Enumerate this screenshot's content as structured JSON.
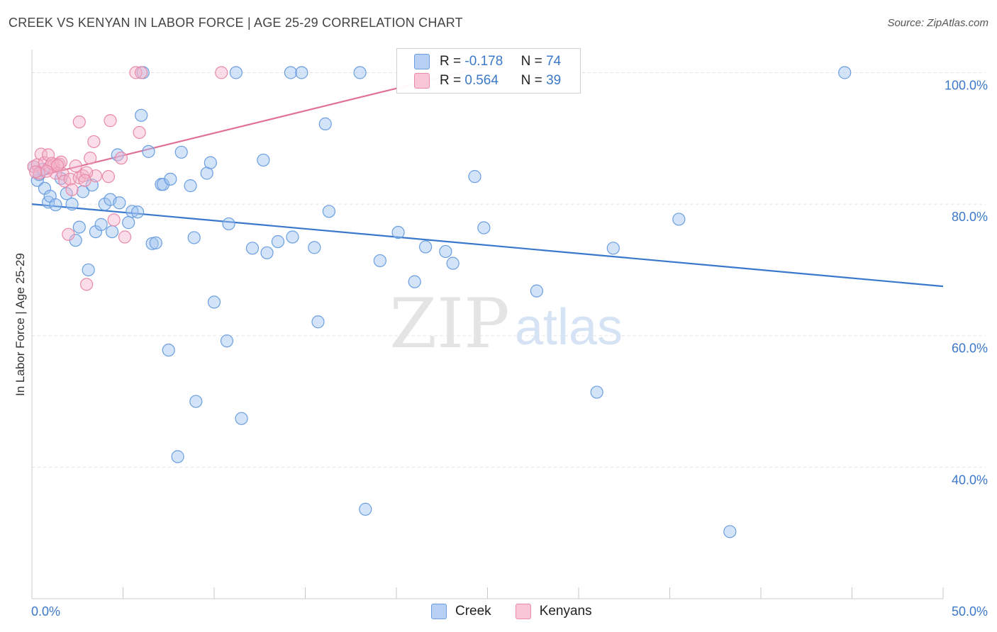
{
  "title": "CREEK VS KENYAN IN LABOR FORCE | AGE 25-29 CORRELATION CHART",
  "source": "Source: ZipAtlas.com",
  "watermark": {
    "zip": "ZIP",
    "atlas": "atlas"
  },
  "legend": {
    "r_label": "R =",
    "n_label": "N =",
    "rows": [
      {
        "series": "Creek",
        "r": "-0.178",
        "n": "74",
        "fill": "#a8c8f0",
        "stroke": "#5b8fd6"
      },
      {
        "series": "Kenyans",
        "r": "0.564",
        "n": "39",
        "fill": "#f5b8cc",
        "stroke": "#e07a9c"
      }
    ]
  },
  "bottom_legend": [
    "Creek",
    "Kenyans"
  ],
  "colors": {
    "creek_fill": "rgba(160,196,240,0.45)",
    "creek_stroke": "#6a9ee0",
    "creek_line": "#3a78cc",
    "kenyan_fill": "rgba(245,180,204,0.45)",
    "kenyan_stroke": "#e88aa8",
    "kenyan_line": "#e0709a",
    "tick_text": "#3c78c8"
  },
  "chart_data": {
    "type": "scatter",
    "title": "CREEK VS KENYAN IN LABOR FORCE | AGE 25-29 CORRELATION CHART",
    "xlabel": "",
    "ylabel": "In Labor Force | Age 25-29",
    "xlim": [
      0,
      50
    ],
    "ylim": [
      20,
      103.5
    ],
    "x_tick_labels": [
      {
        "value": 0,
        "label": "0.0%"
      },
      {
        "value": 50,
        "label": "50.0%"
      }
    ],
    "y_tick_labels": [
      {
        "value": 100,
        "label": "100.0%"
      },
      {
        "value": 80,
        "label": "80.0%"
      },
      {
        "value": 60,
        "label": "60.0%"
      },
      {
        "value": 40,
        "label": "40.0%"
      }
    ],
    "grid": true,
    "series": [
      {
        "name": "Creek",
        "points": [
          [
            0.3,
            83.6
          ],
          [
            0.7,
            82.4
          ],
          [
            0.9,
            80.3
          ],
          [
            1.0,
            81.2
          ],
          [
            1.3,
            79.9
          ],
          [
            1.6,
            83.9
          ],
          [
            1.9,
            81.6
          ],
          [
            2.2,
            80.0
          ],
          [
            2.6,
            76.5
          ],
          [
            2.4,
            74.5
          ],
          [
            2.8,
            81.9
          ],
          [
            3.1,
            70.0
          ],
          [
            3.3,
            82.9
          ],
          [
            3.5,
            75.8
          ],
          [
            3.8,
            76.9
          ],
          [
            4.0,
            80.0
          ],
          [
            4.3,
            80.7
          ],
          [
            4.4,
            75.8
          ],
          [
            4.7,
            87.5
          ],
          [
            4.8,
            80.2
          ],
          [
            5.3,
            77.2
          ],
          [
            5.5,
            78.9
          ],
          [
            5.8,
            78.8
          ],
          [
            6.0,
            93.5
          ],
          [
            6.1,
            100.0
          ],
          [
            6.4,
            88.0
          ],
          [
            6.6,
            74.0
          ],
          [
            6.8,
            74.1
          ],
          [
            7.1,
            83.0
          ],
          [
            7.2,
            83.0
          ],
          [
            7.5,
            57.8
          ],
          [
            7.6,
            83.8
          ],
          [
            8.0,
            41.6
          ],
          [
            8.2,
            87.9
          ],
          [
            8.7,
            82.8
          ],
          [
            8.9,
            74.9
          ],
          [
            9.0,
            50.0
          ],
          [
            9.6,
            84.7
          ],
          [
            9.8,
            86.3
          ],
          [
            10.0,
            65.1
          ],
          [
            10.7,
            59.2
          ],
          [
            10.8,
            77.0
          ],
          [
            11.2,
            100.0
          ],
          [
            11.5,
            47.4
          ],
          [
            12.1,
            73.3
          ],
          [
            12.7,
            86.7
          ],
          [
            12.9,
            72.6
          ],
          [
            13.5,
            74.3
          ],
          [
            14.2,
            100.0
          ],
          [
            14.3,
            75.0
          ],
          [
            14.8,
            100.0
          ],
          [
            15.5,
            73.4
          ],
          [
            15.7,
            62.1
          ],
          [
            16.1,
            92.2
          ],
          [
            16.3,
            78.9
          ],
          [
            18.0,
            100.0
          ],
          [
            18.3,
            33.6
          ],
          [
            19.1,
            71.4
          ],
          [
            20.1,
            75.7
          ],
          [
            21.0,
            68.2
          ],
          [
            21.6,
            73.5
          ],
          [
            22.7,
            72.8
          ],
          [
            23.1,
            71.0
          ],
          [
            24.3,
            84.2
          ],
          [
            24.8,
            76.4
          ],
          [
            27.7,
            66.8
          ],
          [
            31.0,
            51.4
          ],
          [
            31.9,
            73.3
          ],
          [
            35.5,
            77.7
          ],
          [
            38.3,
            30.2
          ],
          [
            44.6,
            100.0
          ],
          [
            0.1,
            85.7
          ],
          [
            0.4,
            84.5
          ],
          [
            0.6,
            85.3
          ]
        ],
        "trendline": {
          "x": [
            0,
            50
          ],
          "y": [
            80.0,
            67.5
          ]
        }
      },
      {
        "name": "Kenyans",
        "points": [
          [
            0.1,
            85.7
          ],
          [
            0.3,
            86.0
          ],
          [
            0.4,
            84.7
          ],
          [
            0.5,
            87.6
          ],
          [
            0.7,
            86.3
          ],
          [
            0.9,
            87.5
          ],
          [
            1.0,
            85.7
          ],
          [
            1.2,
            86.0
          ],
          [
            1.3,
            84.7
          ],
          [
            1.5,
            86.1
          ],
          [
            1.7,
            84.6
          ],
          [
            1.8,
            83.5
          ],
          [
            2.0,
            75.4
          ],
          [
            2.1,
            83.8
          ],
          [
            2.2,
            82.2
          ],
          [
            2.4,
            85.8
          ],
          [
            2.6,
            84.0
          ],
          [
            2.8,
            84.3
          ],
          [
            3.0,
            67.8
          ],
          [
            3.2,
            87.0
          ],
          [
            3.4,
            89.5
          ],
          [
            3.5,
            84.3
          ],
          [
            2.6,
            92.5
          ],
          [
            4.2,
            84.2
          ],
          [
            4.3,
            92.7
          ],
          [
            4.5,
            77.6
          ],
          [
            4.9,
            87.0
          ],
          [
            5.1,
            75.0
          ],
          [
            5.9,
            90.9
          ],
          [
            5.7,
            100.0
          ],
          [
            6.0,
            100.0
          ],
          [
            10.4,
            100.0
          ],
          [
            1.1,
            86.2
          ],
          [
            0.8,
            85.0
          ],
          [
            1.6,
            86.4
          ],
          [
            0.2,
            84.9
          ],
          [
            3.0,
            84.8
          ],
          [
            1.4,
            85.9
          ],
          [
            2.9,
            83.6
          ]
        ],
        "trendline": {
          "x": [
            0,
            25
          ],
          "y": [
            84.0,
            101.0
          ]
        }
      }
    ]
  }
}
